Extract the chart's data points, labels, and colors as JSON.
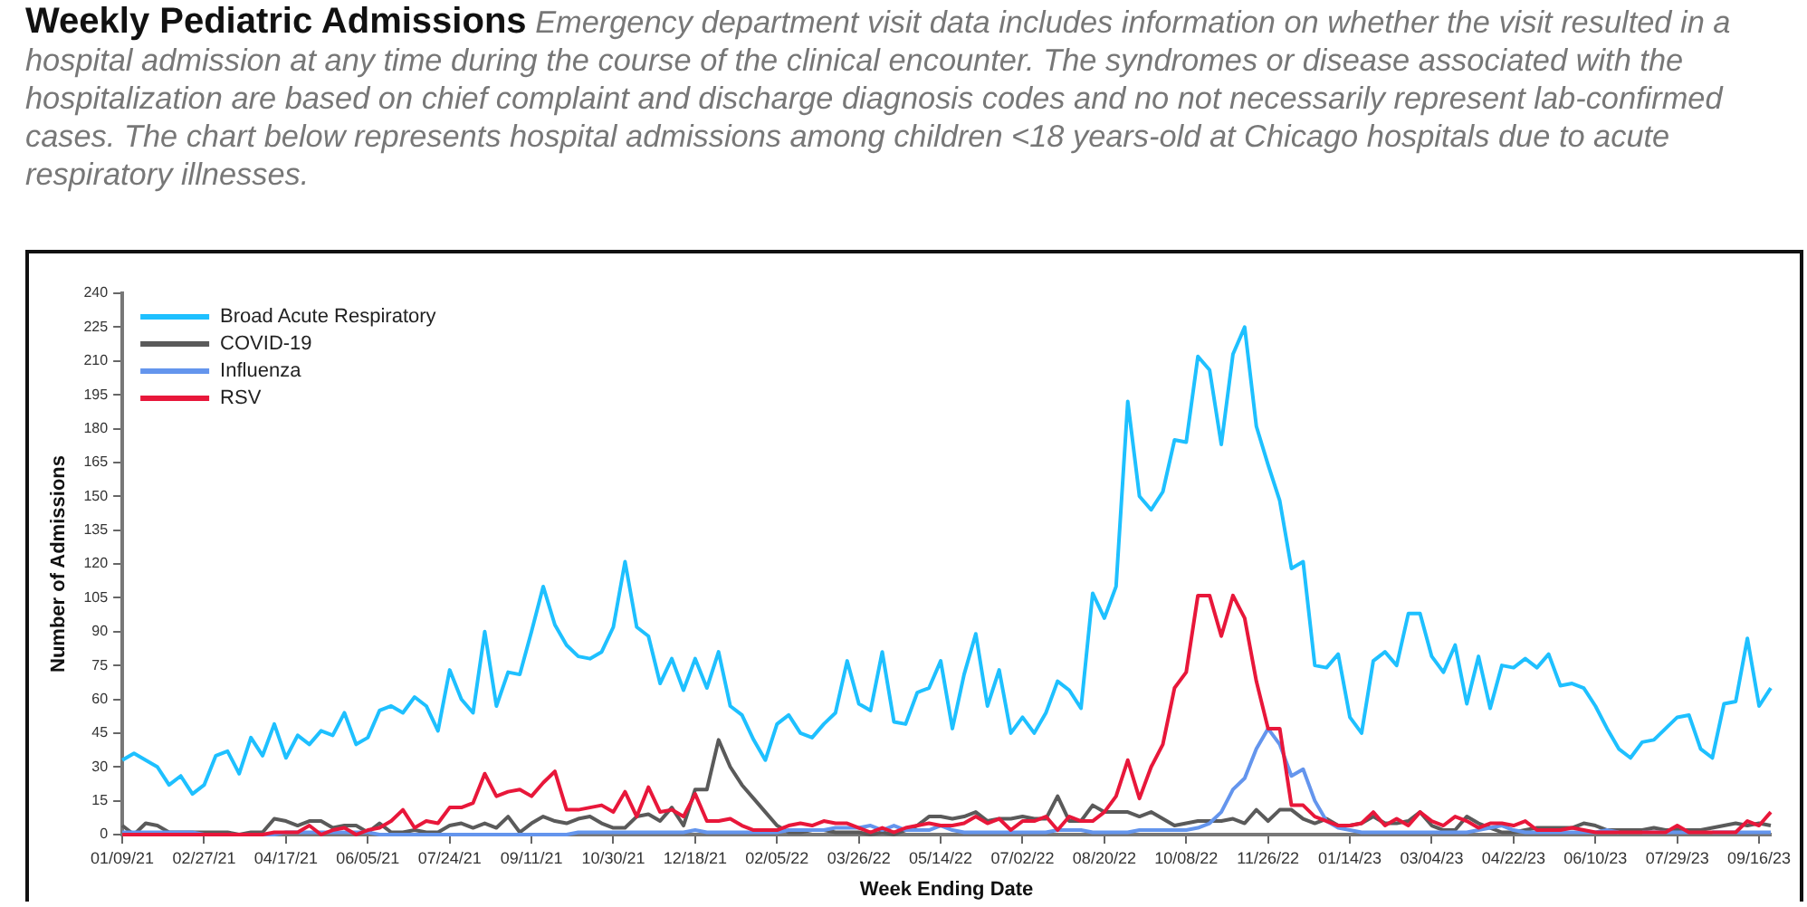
{
  "chart_data": {
    "type": "line",
    "title": "Weekly Pediatric Admissions",
    "subtitle": "Emergency department visit data includes information on whether the visit resulted in a hospital admission at any time during the course of the clinical encounter.   The syndromes or disease associated with the hospitalization are based on chief complaint and discharge diagnosis codes and no not necessarily represent lab-confirmed cases.  The chart below represents hospital admissions among children <18 years-old at Chicago hospitals due to acute respiratory illnesses.",
    "xlabel": "Week Ending Date",
    "ylabel": "Number of Admissions",
    "categories": [
      "01/09/21",
      null,
      null,
      null,
      null,
      null,
      null,
      "02/27/21",
      null,
      null,
      null,
      null,
      null,
      null,
      "04/17/21",
      null,
      null,
      null,
      null,
      null,
      null,
      "06/05/21",
      null,
      null,
      null,
      null,
      null,
      null,
      "07/24/21",
      null,
      null,
      null,
      null,
      null,
      null,
      "09/11/21",
      null,
      null,
      null,
      null,
      null,
      null,
      "10/30/21",
      null,
      null,
      null,
      null,
      null,
      null,
      "12/18/21",
      null,
      null,
      null,
      null,
      null,
      null,
      "02/05/22",
      null,
      null,
      null,
      null,
      null,
      null,
      "03/26/22",
      null,
      null,
      null,
      null,
      null,
      null,
      "05/14/22",
      null,
      null,
      null,
      null,
      null,
      null,
      "07/02/22",
      null,
      null,
      null,
      null,
      null,
      null,
      "08/20/22",
      null,
      null,
      null,
      null,
      null,
      null,
      "10/08/22",
      null,
      null,
      null,
      null,
      null,
      null,
      "11/26/22",
      null,
      null,
      null,
      null,
      null,
      null,
      "01/14/23",
      null,
      null,
      null,
      null,
      null,
      null,
      "03/04/23",
      null,
      null,
      null,
      null,
      null,
      null,
      "04/22/23",
      null,
      null,
      null,
      null,
      null,
      null,
      "06/10/23",
      null,
      null,
      null,
      null,
      null,
      null,
      "07/29/23",
      null,
      null,
      null,
      null,
      null,
      null,
      "09/16/23",
      null
    ],
    "series": [
      {
        "name": "Broad Acute Respiratory",
        "color": "#1ec0ff",
        "values": [
          33,
          36,
          33,
          30,
          22,
          26,
          18,
          22,
          35,
          37,
          27,
          43,
          35,
          49,
          34,
          44,
          40,
          46,
          44,
          54,
          40,
          43,
          55,
          57,
          54,
          61,
          57,
          46,
          73,
          60,
          54,
          90,
          57,
          72,
          71,
          90,
          110,
          93,
          84,
          79,
          78,
          81,
          92,
          121,
          92,
          88,
          67,
          78,
          64,
          78,
          65,
          81,
          57,
          53,
          42,
          33,
          49,
          53,
          45,
          43,
          49,
          54,
          77,
          58,
          55,
          81,
          50,
          49,
          63,
          65,
          77,
          47,
          71,
          89,
          57,
          73,
          45,
          52,
          45,
          54,
          68,
          64,
          56,
          107,
          96,
          110,
          192,
          150,
          144,
          152,
          175,
          174,
          212,
          206,
          173,
          213,
          225,
          181,
          164,
          148,
          118,
          121,
          75,
          74,
          80,
          52,
          45,
          77,
          81,
          75,
          98,
          98,
          79,
          72,
          84,
          58,
          79,
          56,
          75,
          74,
          78,
          74,
          80,
          66,
          67,
          65,
          57,
          47,
          38,
          34,
          41,
          42,
          47,
          52,
          53,
          38,
          34,
          58,
          59,
          87,
          57,
          65
        ]
      },
      {
        "name": "COVID-19",
        "color": "#5a5a5a",
        "values": [
          4,
          0,
          5,
          4,
          1,
          1,
          1,
          1,
          1,
          1,
          0,
          1,
          1,
          7,
          6,
          4,
          6,
          6,
          3,
          4,
          4,
          1,
          5,
          1,
          1,
          2,
          1,
          1,
          4,
          5,
          3,
          5,
          3,
          8,
          1,
          5,
          8,
          6,
          5,
          7,
          8,
          5,
          3,
          3,
          8,
          9,
          6,
          12,
          4,
          20,
          20,
          42,
          30,
          22,
          16,
          10,
          4,
          1,
          1,
          2,
          2,
          1,
          1,
          1,
          0,
          1,
          0,
          2,
          4,
          8,
          8,
          7,
          8,
          10,
          6,
          7,
          7,
          8,
          7,
          7,
          17,
          6,
          6,
          13,
          10,
          10,
          10,
          8,
          10,
          7,
          4,
          5,
          6,
          6,
          6,
          7,
          5,
          11,
          6,
          11,
          11,
          7,
          5,
          7,
          4,
          4,
          5,
          8,
          5,
          5,
          6,
          10,
          4,
          2,
          2,
          8,
          5,
          3,
          1,
          1,
          2,
          3,
          3,
          3,
          3,
          5,
          4,
          2,
          2,
          2,
          2,
          3,
          2,
          2,
          2,
          2,
          3,
          4,
          5,
          4,
          5,
          4
        ]
      },
      {
        "name": "Influenza",
        "color": "#6495ed",
        "values": [
          1,
          1,
          1,
          1,
          1,
          1,
          1,
          0,
          0,
          0,
          0,
          0,
          0,
          0,
          1,
          1,
          1,
          1,
          1,
          1,
          1,
          1,
          0,
          0,
          0,
          0,
          0,
          0,
          0,
          0,
          0,
          0,
          0,
          0,
          0,
          0,
          0,
          0,
          0,
          1,
          1,
          1,
          1,
          1,
          1,
          1,
          1,
          1,
          1,
          2,
          1,
          1,
          1,
          1,
          1,
          1,
          1,
          2,
          2,
          2,
          2,
          3,
          3,
          3,
          4,
          2,
          4,
          2,
          2,
          2,
          4,
          2,
          1,
          1,
          1,
          1,
          1,
          1,
          1,
          1,
          2,
          2,
          2,
          1,
          1,
          1,
          1,
          2,
          2,
          2,
          2,
          2,
          3,
          5,
          10,
          20,
          25,
          38,
          47,
          40,
          26,
          29,
          15,
          6,
          3,
          2,
          1,
          1,
          1,
          1,
          1,
          1,
          1,
          1,
          1,
          1,
          2,
          3,
          4,
          2,
          1,
          1,
          1,
          1,
          1,
          1,
          1,
          2,
          1,
          null,
          1,
          1,
          1,
          1,
          1,
          null,
          1,
          1,
          1,
          1,
          1,
          1
        ]
      },
      {
        "name": "RSV",
        "color": "#e8173a",
        "values": [
          0,
          0,
          0,
          0,
          0,
          0,
          0,
          0,
          0,
          0,
          0,
          0,
          0,
          1,
          1,
          1,
          4,
          0,
          2,
          3,
          0,
          2,
          3,
          6,
          11,
          3,
          6,
          5,
          12,
          12,
          14,
          27,
          17,
          19,
          20,
          17,
          23,
          28,
          11,
          11,
          12,
          13,
          10,
          19,
          8,
          21,
          10,
          11,
          8,
          18,
          6,
          6,
          7,
          4,
          2,
          2,
          2,
          4,
          5,
          4,
          6,
          5,
          5,
          3,
          1,
          3,
          1,
          3,
          4,
          5,
          4,
          4,
          5,
          8,
          5,
          7,
          2,
          6,
          6,
          8,
          2,
          8,
          6,
          6,
          10,
          17,
          33,
          16,
          30,
          40,
          65,
          72,
          106,
          106,
          88,
          106,
          96,
          68,
          47,
          47,
          13,
          13,
          8,
          6,
          4,
          4,
          5,
          10,
          4,
          7,
          4,
          10,
          6,
          4,
          8,
          6,
          3,
          5,
          5,
          4,
          6,
          2,
          2,
          2,
          3,
          2,
          1,
          1,
          1,
          1,
          1,
          1,
          1,
          4,
          1,
          1,
          1,
          1,
          1,
          6,
          4,
          10
        ]
      }
    ],
    "ylim": [
      0,
      240
    ],
    "yticks": [
      0,
      15,
      30,
      45,
      60,
      75,
      90,
      105,
      120,
      135,
      150,
      165,
      180,
      195,
      210,
      225,
      240
    ],
    "grid": false,
    "legend": "top left",
    "marker": "none",
    "line_style": "solid"
  }
}
